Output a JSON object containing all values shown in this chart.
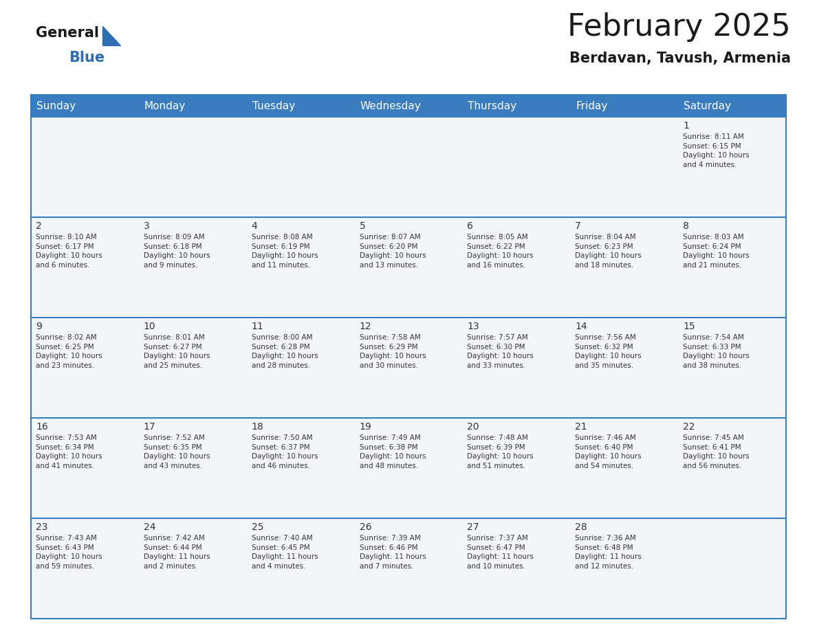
{
  "title": "February 2025",
  "subtitle": "Berdavan, Tavush, Armenia",
  "header_color": "#3a7dbf",
  "header_text_color": "#ffffff",
  "cell_bg_even": "#eef2f7",
  "cell_bg_odd": "#ffffff",
  "border_color": "#3a7dbf",
  "text_color": "#333333",
  "days_of_week": [
    "Sunday",
    "Monday",
    "Tuesday",
    "Wednesday",
    "Thursday",
    "Friday",
    "Saturday"
  ],
  "weeks": [
    [
      {
        "day": "",
        "info": ""
      },
      {
        "day": "",
        "info": ""
      },
      {
        "day": "",
        "info": ""
      },
      {
        "day": "",
        "info": ""
      },
      {
        "day": "",
        "info": ""
      },
      {
        "day": "",
        "info": ""
      },
      {
        "day": "1",
        "info": "Sunrise: 8:11 AM\nSunset: 6:15 PM\nDaylight: 10 hours\nand 4 minutes."
      }
    ],
    [
      {
        "day": "2",
        "info": "Sunrise: 8:10 AM\nSunset: 6:17 PM\nDaylight: 10 hours\nand 6 minutes."
      },
      {
        "day": "3",
        "info": "Sunrise: 8:09 AM\nSunset: 6:18 PM\nDaylight: 10 hours\nand 9 minutes."
      },
      {
        "day": "4",
        "info": "Sunrise: 8:08 AM\nSunset: 6:19 PM\nDaylight: 10 hours\nand 11 minutes."
      },
      {
        "day": "5",
        "info": "Sunrise: 8:07 AM\nSunset: 6:20 PM\nDaylight: 10 hours\nand 13 minutes."
      },
      {
        "day": "6",
        "info": "Sunrise: 8:05 AM\nSunset: 6:22 PM\nDaylight: 10 hours\nand 16 minutes."
      },
      {
        "day": "7",
        "info": "Sunrise: 8:04 AM\nSunset: 6:23 PM\nDaylight: 10 hours\nand 18 minutes."
      },
      {
        "day": "8",
        "info": "Sunrise: 8:03 AM\nSunset: 6:24 PM\nDaylight: 10 hours\nand 21 minutes."
      }
    ],
    [
      {
        "day": "9",
        "info": "Sunrise: 8:02 AM\nSunset: 6:25 PM\nDaylight: 10 hours\nand 23 minutes."
      },
      {
        "day": "10",
        "info": "Sunrise: 8:01 AM\nSunset: 6:27 PM\nDaylight: 10 hours\nand 25 minutes."
      },
      {
        "day": "11",
        "info": "Sunrise: 8:00 AM\nSunset: 6:28 PM\nDaylight: 10 hours\nand 28 minutes."
      },
      {
        "day": "12",
        "info": "Sunrise: 7:58 AM\nSunset: 6:29 PM\nDaylight: 10 hours\nand 30 minutes."
      },
      {
        "day": "13",
        "info": "Sunrise: 7:57 AM\nSunset: 6:30 PM\nDaylight: 10 hours\nand 33 minutes."
      },
      {
        "day": "14",
        "info": "Sunrise: 7:56 AM\nSunset: 6:32 PM\nDaylight: 10 hours\nand 35 minutes."
      },
      {
        "day": "15",
        "info": "Sunrise: 7:54 AM\nSunset: 6:33 PM\nDaylight: 10 hours\nand 38 minutes."
      }
    ],
    [
      {
        "day": "16",
        "info": "Sunrise: 7:53 AM\nSunset: 6:34 PM\nDaylight: 10 hours\nand 41 minutes."
      },
      {
        "day": "17",
        "info": "Sunrise: 7:52 AM\nSunset: 6:35 PM\nDaylight: 10 hours\nand 43 minutes."
      },
      {
        "day": "18",
        "info": "Sunrise: 7:50 AM\nSunset: 6:37 PM\nDaylight: 10 hours\nand 46 minutes."
      },
      {
        "day": "19",
        "info": "Sunrise: 7:49 AM\nSunset: 6:38 PM\nDaylight: 10 hours\nand 48 minutes."
      },
      {
        "day": "20",
        "info": "Sunrise: 7:48 AM\nSunset: 6:39 PM\nDaylight: 10 hours\nand 51 minutes."
      },
      {
        "day": "21",
        "info": "Sunrise: 7:46 AM\nSunset: 6:40 PM\nDaylight: 10 hours\nand 54 minutes."
      },
      {
        "day": "22",
        "info": "Sunrise: 7:45 AM\nSunset: 6:41 PM\nDaylight: 10 hours\nand 56 minutes."
      }
    ],
    [
      {
        "day": "23",
        "info": "Sunrise: 7:43 AM\nSunset: 6:43 PM\nDaylight: 10 hours\nand 59 minutes."
      },
      {
        "day": "24",
        "info": "Sunrise: 7:42 AM\nSunset: 6:44 PM\nDaylight: 11 hours\nand 2 minutes."
      },
      {
        "day": "25",
        "info": "Sunrise: 7:40 AM\nSunset: 6:45 PM\nDaylight: 11 hours\nand 4 minutes."
      },
      {
        "day": "26",
        "info": "Sunrise: 7:39 AM\nSunset: 6:46 PM\nDaylight: 11 hours\nand 7 minutes."
      },
      {
        "day": "27",
        "info": "Sunrise: 7:37 AM\nSunset: 6:47 PM\nDaylight: 11 hours\nand 10 minutes."
      },
      {
        "day": "28",
        "info": "Sunrise: 7:36 AM\nSunset: 6:48 PM\nDaylight: 11 hours\nand 12 minutes."
      },
      {
        "day": "",
        "info": ""
      }
    ]
  ],
  "logo_general_color": "#1a1a1a",
  "logo_blue_color": "#2e6db4",
  "logo_triangle_color": "#2e6db4",
  "title_fontsize": 32,
  "subtitle_fontsize": 15,
  "header_fontsize": 11,
  "day_num_fontsize": 10,
  "info_fontsize": 7.5
}
